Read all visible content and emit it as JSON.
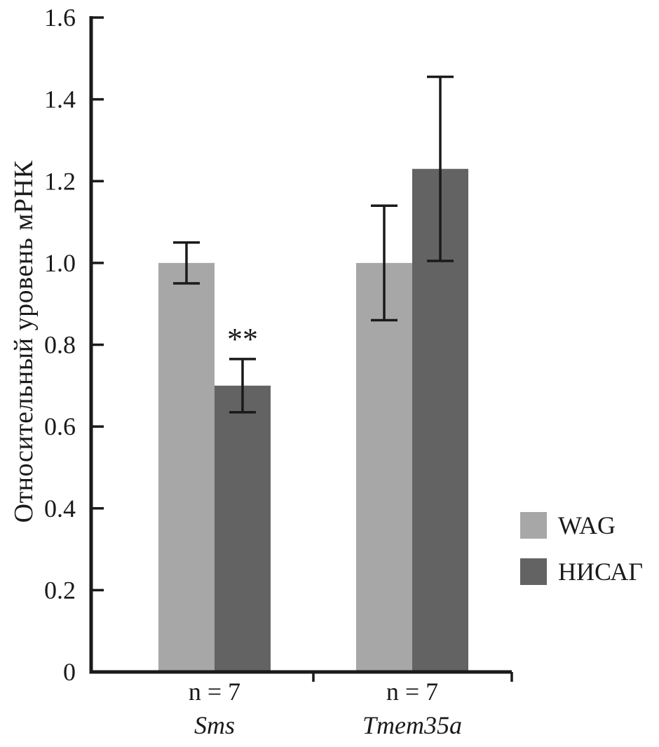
{
  "chart_data": {
    "type": "bar",
    "title": "",
    "ylabel": "Относительный уровень мРНК",
    "xlabel": "",
    "ylim": [
      0,
      1.6
    ],
    "ytick_labels": [
      "0",
      "0.2",
      "0.4",
      "0.6",
      "0.8",
      "1.0",
      "1.2",
      "1.4",
      "1.6"
    ],
    "grid": false,
    "legend_position": "right",
    "axis_color": "#1a1a1a",
    "groups": [
      {
        "n_label": "n = 7",
        "gene": "Sms"
      },
      {
        "n_label": "n = 7",
        "gene": "Tmem35a"
      }
    ],
    "series": [
      {
        "name": "WAG",
        "color": "#a7a7a7",
        "values": [
          1.0,
          1.0
        ],
        "errors": [
          0.05,
          0.14
        ]
      },
      {
        "name": "НИСАГ",
        "color": "#636363",
        "values": [
          0.7,
          1.23
        ],
        "errors": [
          0.065,
          0.225
        ]
      }
    ],
    "annotations": [
      {
        "group": 0,
        "series": 1,
        "text": "**"
      }
    ]
  }
}
